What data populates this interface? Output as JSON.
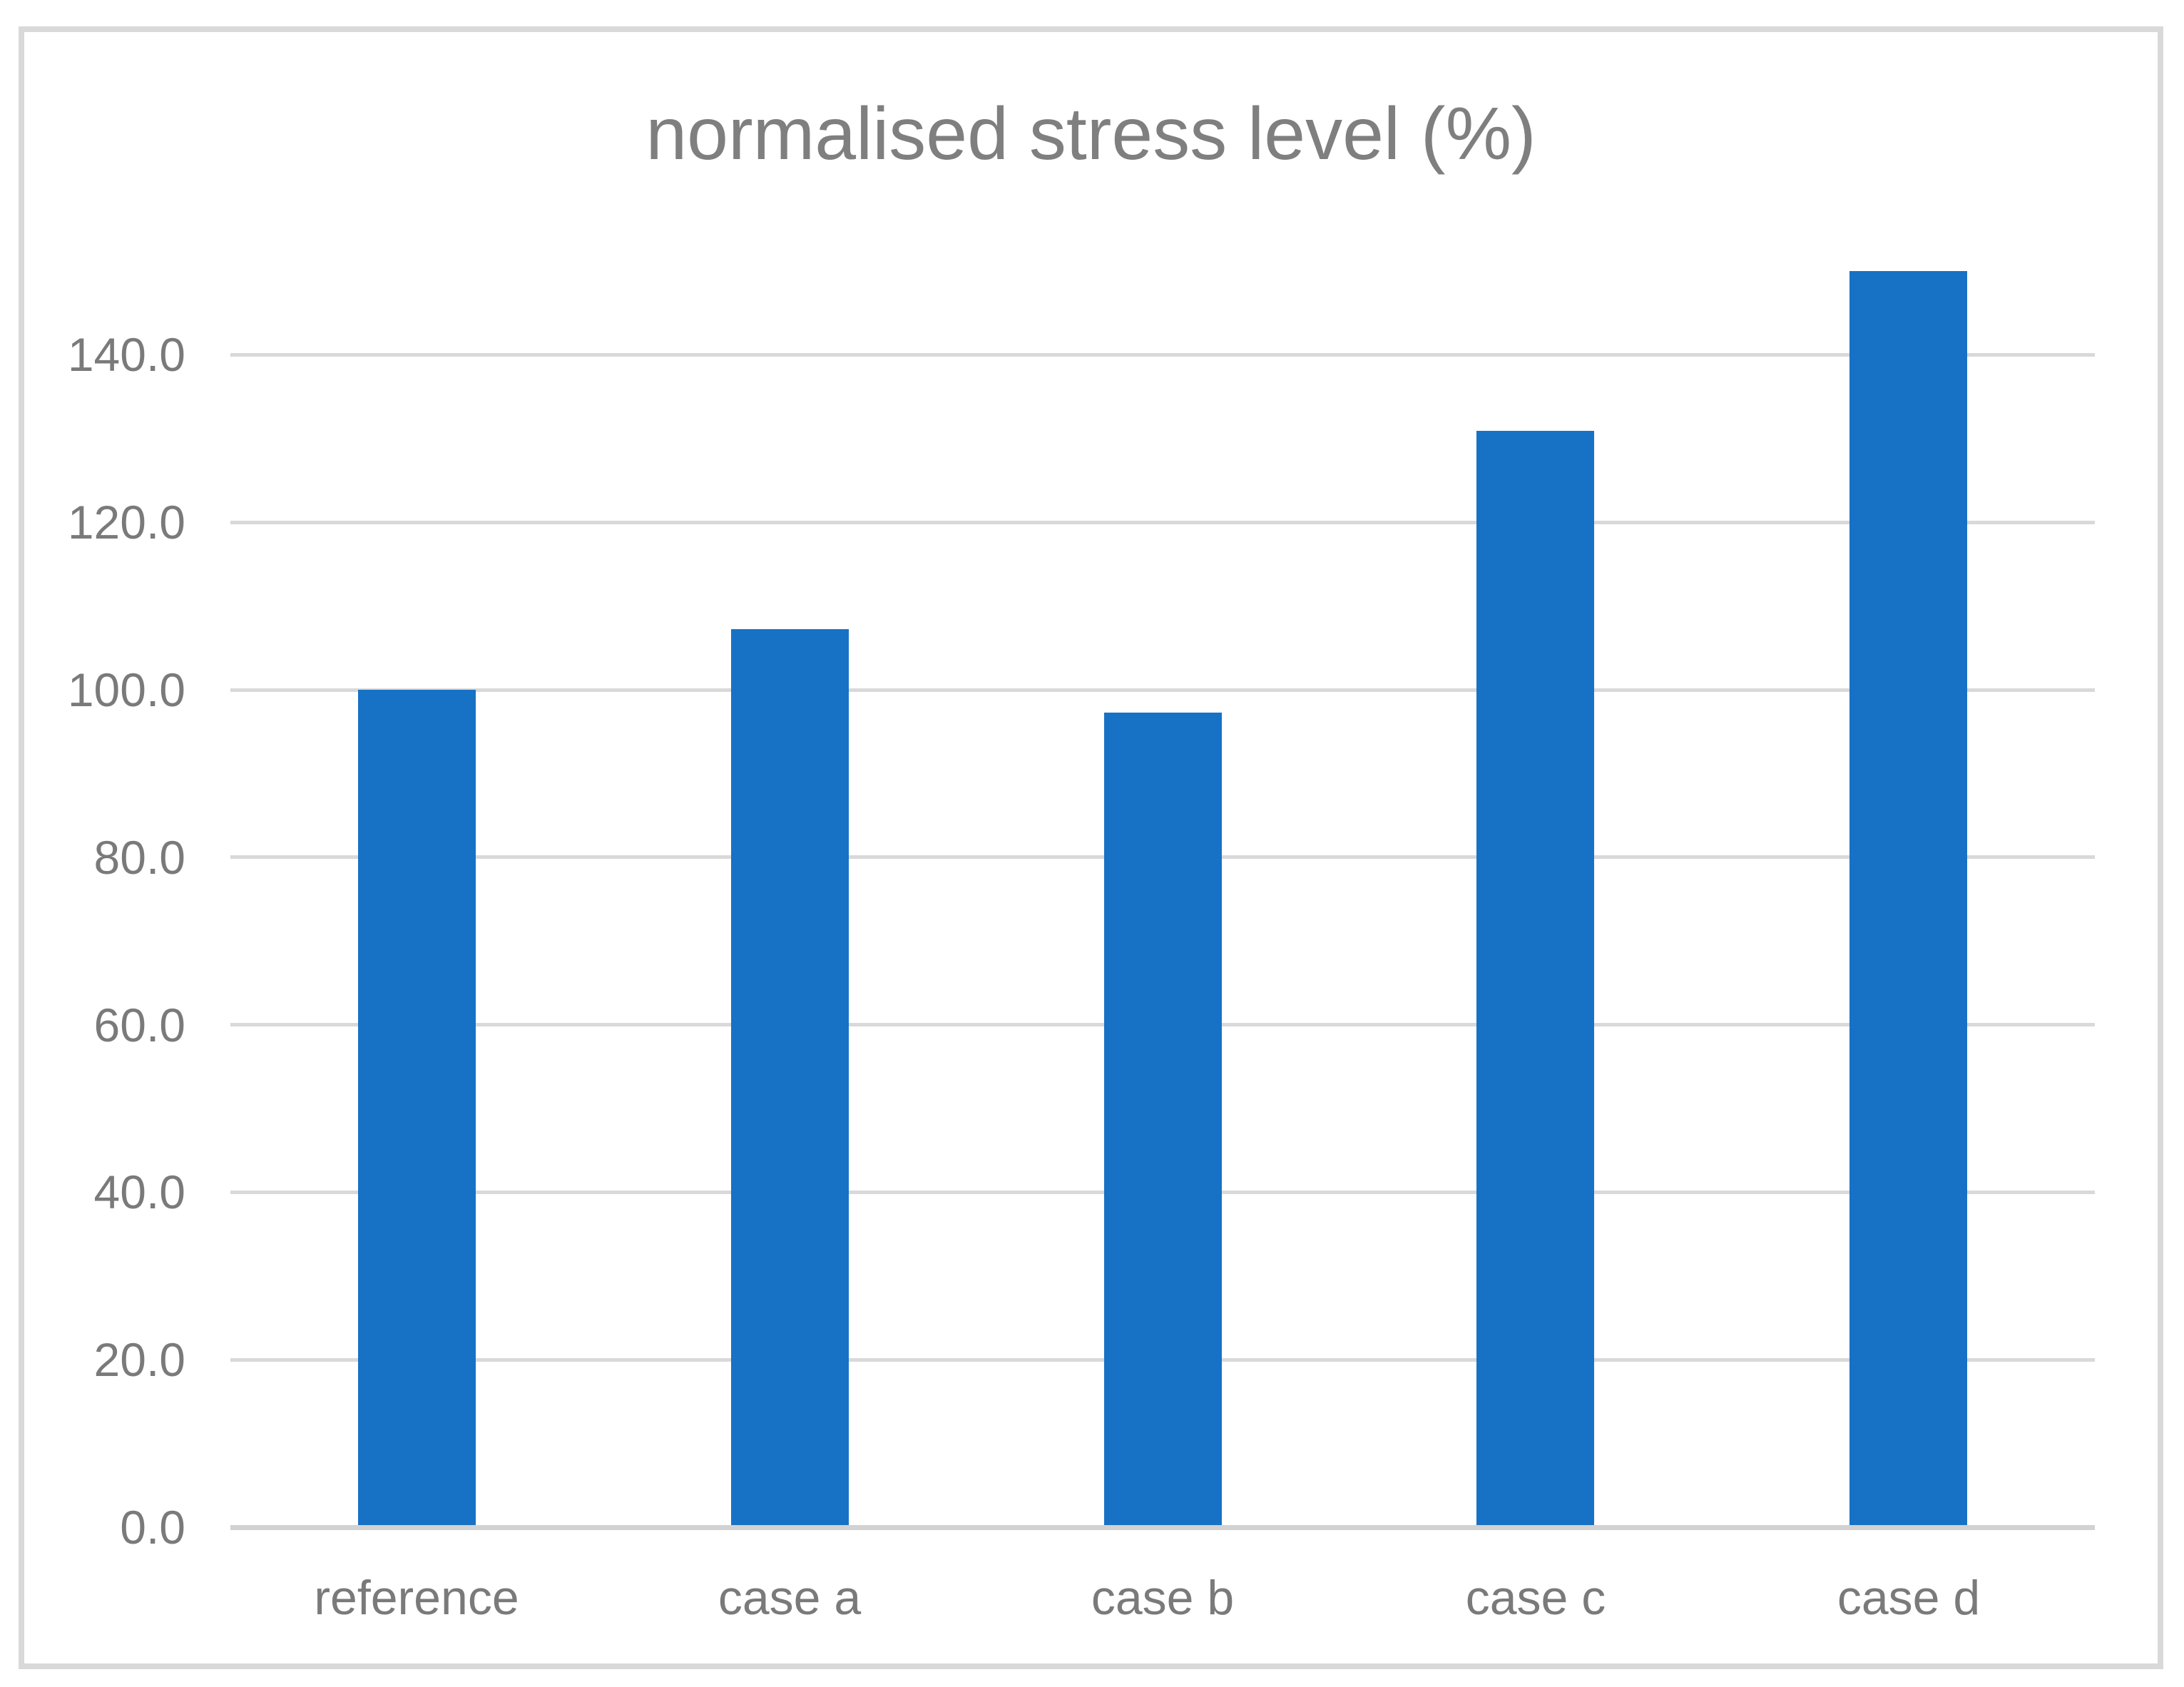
{
  "chart_data": {
    "type": "bar",
    "title": "normalised stress level (%)",
    "categories": [
      "reference",
      "case a",
      "case b",
      "case c",
      "case d"
    ],
    "values": [
      100.0,
      107.2,
      97.3,
      130.9,
      150.0
    ],
    "xlabel": "",
    "ylabel": "",
    "ylim": [
      0,
      150
    ],
    "ytick_interval": 20,
    "ytick_labels": [
      "0.0",
      "20.0",
      "40.0",
      "60.0",
      "80.0",
      "100.0",
      "120.0",
      "140.0"
    ],
    "grid": true,
    "legend": "none",
    "bar_color": "#1772c6",
    "gridline_color": "#d9d9d9",
    "axis_line_color": "#d2d2d2",
    "frame_border_color": "#d9d9d9",
    "text_color": "#7a7a7a",
    "title_color": "#7f7f7f"
  }
}
